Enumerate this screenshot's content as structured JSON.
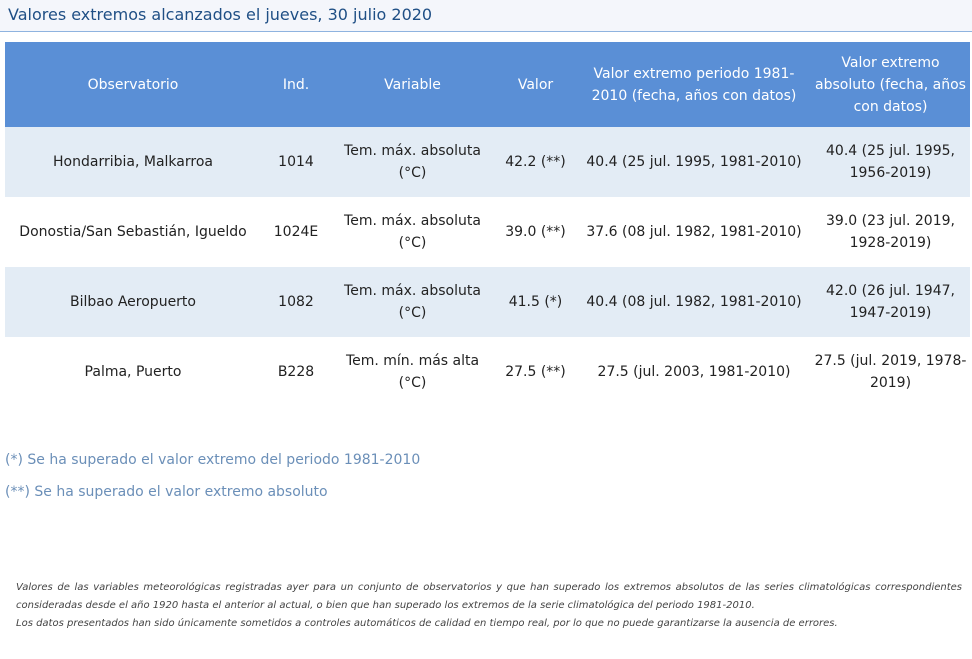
{
  "title": "Valores extremos alcanzados el jueves, 30 julio 2020",
  "table": {
    "headers": [
      "Observatorio",
      "Ind.",
      "Variable",
      "Valor",
      "Valor extremo periodo 1981-2010 (fecha, años con datos)",
      "Valor extremo absoluto (fecha, años con datos)"
    ],
    "rows": [
      [
        "Hondarribia, Malkarroa",
        "1014",
        "Tem. máx. absoluta (°C)",
        "42.2 (**)",
        "40.4 (25 jul. 1995, 1981-2010)",
        "40.4 (25 jul. 1995, 1956-2019)"
      ],
      [
        "Donostia/San Sebastián, Igueldo",
        "1024E",
        "Tem. máx. absoluta (°C)",
        "39.0 (**)",
        "37.6 (08 jul. 1982, 1981-2010)",
        "39.0 (23 jul. 2019, 1928-2019)"
      ],
      [
        "Bilbao Aeropuerto",
        "1082",
        "Tem. máx. absoluta (°C)",
        "41.5 (*)",
        "40.4 (08 jul. 1982, 1981-2010)",
        "42.0 (26 jul. 1947, 1947-2019)"
      ],
      [
        "Palma, Puerto",
        "B228",
        "Tem. mín. más alta (°C)",
        "27.5 (**)",
        "27.5 (jul. 2003, 1981-2010)",
        "27.5 (jul. 2019, 1978-2019)"
      ]
    ]
  },
  "notes": {
    "note1": "(*) Se ha superado el valor extremo del periodo 1981-2010",
    "note2": "(**) Se ha superado el valor extremo absoluto"
  },
  "footer": {
    "p1": "Valores de las variables meteorológicas registradas ayer para un conjunto de observatorios y que han superado los extremos absolutos de las series climatológicas correspondientes consideradas desde el año 1920 hasta el anterior al actual, o bien que han superado los extremos de la serie climatológica del periodo 1981-2010.",
    "p2": "Los datos presentados han sido únicamente sometidos a controles automáticos de calidad en tiempo real, por lo que no puede garantizarse la ausencia de errores."
  },
  "colors": {
    "header_bg": "#5a8fd6",
    "row_alt_bg": "#e3ecf5",
    "title_color": "#1f4f85",
    "note_color": "#6b8fb8"
  }
}
